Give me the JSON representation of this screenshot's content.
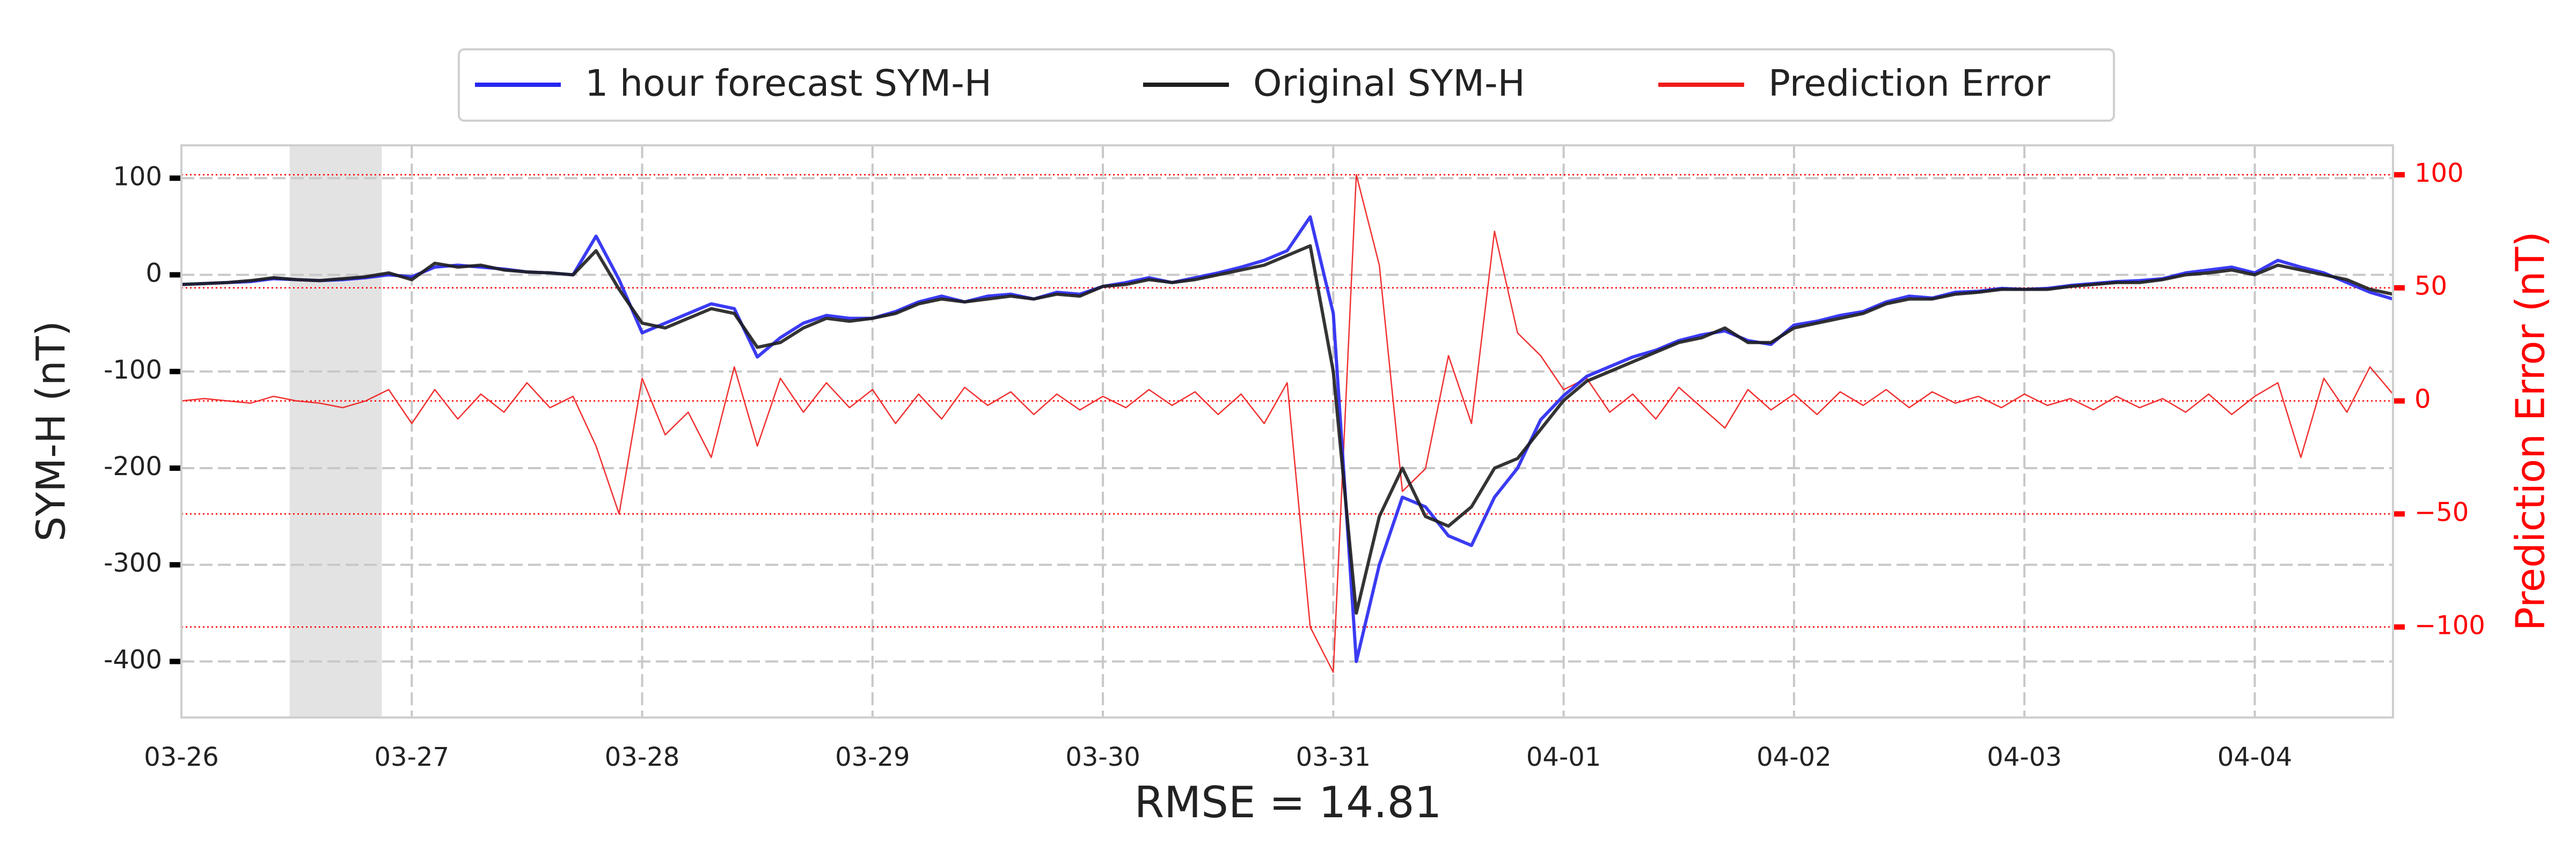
{
  "chart_data": {
    "type": "line",
    "annotation": "RMSE = 14.81",
    "ylabel": "SYM-H (nT)",
    "y2label": "Prediction Error (nT)",
    "x": [
      0,
      0.1,
      0.2,
      0.3,
      0.4,
      0.5,
      0.6,
      0.7,
      0.8,
      0.9,
      1,
      1.1,
      1.2,
      1.3,
      1.4,
      1.5,
      1.6,
      1.7,
      1.8,
      1.9,
      2,
      2.1,
      2.2,
      2.3,
      2.4,
      2.5,
      2.6,
      2.7,
      2.8,
      2.9,
      3,
      3.1,
      3.2,
      3.3,
      3.4,
      3.5,
      3.6,
      3.7,
      3.8,
      3.9,
      4,
      4.1,
      4.2,
      4.3,
      4.4,
      4.5,
      4.6,
      4.7,
      4.8,
      4.9,
      5,
      5.1,
      5.2,
      5.3,
      5.4,
      5.5,
      5.6,
      5.7,
      5.8,
      5.9,
      6,
      6.1,
      6.2,
      6.3,
      6.4,
      6.5,
      6.6,
      6.7,
      6.8,
      6.9,
      7,
      7.1,
      7.2,
      7.3,
      7.4,
      7.5,
      7.6,
      7.7,
      7.8,
      7.9,
      8,
      8.1,
      8.2,
      8.3,
      8.4,
      8.5,
      8.6,
      8.7,
      8.8,
      8.9,
      9,
      9.1,
      9.2,
      9.3,
      9.4,
      9.5,
      9.6
    ],
    "series": [
      {
        "name": "1 hour forecast SYM-H",
        "color": "#2626f2",
        "axis": "y",
        "width": 6,
        "values": [
          -10,
          -9,
          -8,
          -7,
          -4,
          -5,
          -6,
          -5,
          -3,
          0,
          -2,
          8,
          10,
          8,
          6,
          3,
          2,
          0,
          40,
          -5,
          -60,
          -50,
          -40,
          -30,
          -35,
          -85,
          -65,
          -50,
          -42,
          -45,
          -45,
          -38,
          -28,
          -22,
          -28,
          -22,
          -20,
          -25,
          -18,
          -20,
          -12,
          -8,
          -3,
          -8,
          -3,
          2,
          8,
          15,
          25,
          60,
          -40,
          -400,
          -300,
          -230,
          -240,
          -270,
          -280,
          -230,
          -200,
          -150,
          -125,
          -105,
          -95,
          -85,
          -78,
          -68,
          -62,
          -58,
          -68,
          -72,
          -52,
          -48,
          -42,
          -38,
          -28,
          -22,
          -24,
          -18,
          -17,
          -14,
          -15,
          -14,
          -11,
          -9,
          -7,
          -6,
          -4,
          2,
          5,
          8,
          2,
          15,
          8,
          2,
          -8,
          -18,
          -25
        ]
      },
      {
        "name": "Original SYM-H",
        "color": "#1e1e1e",
        "axis": "y",
        "width": 6,
        "values": [
          -10,
          -9,
          -8,
          -6,
          -3,
          -5,
          -6,
          -4,
          -2,
          2,
          -5,
          12,
          8,
          10,
          5,
          3,
          2,
          0,
          25,
          -15,
          -50,
          -55,
          -45,
          -35,
          -40,
          -75,
          -70,
          -55,
          -45,
          -48,
          -45,
          -40,
          -30,
          -25,
          -28,
          -25,
          -22,
          -25,
          -20,
          -22,
          -12,
          -10,
          -5,
          -8,
          -5,
          0,
          5,
          10,
          20,
          30,
          -100,
          -350,
          -250,
          -200,
          -250,
          -260,
          -240,
          -200,
          -190,
          -160,
          -130,
          -110,
          -100,
          -90,
          -80,
          -70,
          -65,
          -55,
          -70,
          -70,
          -55,
          -50,
          -45,
          -40,
          -30,
          -25,
          -25,
          -20,
          -18,
          -15,
          -15,
          -15,
          -12,
          -10,
          -8,
          -8,
          -5,
          0,
          2,
          5,
          0,
          10,
          5,
          0,
          -5,
          -15,
          -20
        ]
      },
      {
        "name": "Prediction Error",
        "color": "#f01c1c",
        "axis": "y2",
        "width": 2.5,
        "values": [
          0,
          1,
          0,
          -1,
          2,
          0,
          -1,
          -3,
          0,
          5,
          -10,
          5,
          -8,
          3,
          -5,
          8,
          -3,
          2,
          -20,
          -50,
          10,
          -15,
          -5,
          -25,
          15,
          -20,
          10,
          -5,
          8,
          -3,
          5,
          -10,
          3,
          -8,
          6,
          -2,
          4,
          -6,
          3,
          -4,
          2,
          -3,
          5,
          -2,
          4,
          -6,
          3,
          -10,
          8,
          -100,
          -120,
          100,
          60,
          -40,
          -30,
          20,
          -10,
          75,
          30,
          20,
          5,
          10,
          -5,
          3,
          -8,
          6,
          -3,
          -12,
          5,
          -4,
          3,
          -6,
          4,
          -2,
          5,
          -3,
          4,
          -1,
          2,
          -3,
          3,
          -2,
          1,
          -4,
          2,
          -3,
          1,
          -5,
          3,
          -6,
          2,
          8,
          -25,
          10,
          -5,
          15,
          3
        ]
      }
    ],
    "xlim": [
      0,
      9.6
    ],
    "xticks": [
      {
        "value": 0,
        "label": "03-26"
      },
      {
        "value": 1,
        "label": "03-27"
      },
      {
        "value": 2,
        "label": "03-28"
      },
      {
        "value": 3,
        "label": "03-29"
      },
      {
        "value": 4,
        "label": "03-30"
      },
      {
        "value": 5,
        "label": "03-31"
      },
      {
        "value": 6,
        "label": "04-01"
      },
      {
        "value": 7,
        "label": "04-02"
      },
      {
        "value": 8,
        "label": "04-03"
      },
      {
        "value": 9,
        "label": "04-04"
      }
    ],
    "ylim": [
      -458,
      134
    ],
    "yticks": [
      100,
      0,
      -100,
      -200,
      -300,
      -400
    ],
    "y2lim": [
      -140,
      113
    ],
    "y2ticks": [
      100,
      50,
      0,
      {
        "value": -50,
        "label": "−50"
      },
      {
        "value": -100,
        "label": "−100"
      }
    ],
    "y2color": "#ff0000",
    "grid": true,
    "shaded_xlim": [
      0.47,
      0.87
    ],
    "legend": "top"
  }
}
